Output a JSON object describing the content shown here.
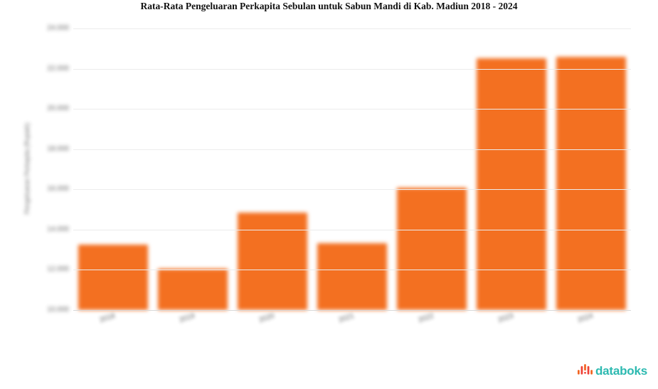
{
  "header": {
    "title": "Rata-Rata Pengeluaran Perkapita Sebulan untuk Sabun Mandi di Kab. Madiun 2018 - 2024"
  },
  "chart_data": {
    "type": "bar",
    "title": "Rata-Rata Pengeluaran Perkapita Sebulan untuk Sabun Mandi di Kab. Madiun 2018 - 2024",
    "categories": [
      "2018",
      "2019",
      "2020",
      "2021",
      "2022",
      "2023",
      "2024"
    ],
    "values": [
      13250,
      12050,
      14830,
      13325,
      16080,
      22515,
      22585
    ],
    "xlabel": "",
    "ylabel": "Pengeluaran Perkapita (Rupiah)",
    "ylim": [
      10000,
      24000
    ],
    "y_tick_step": 2000,
    "y_tick_labels_bottom_to_top": [
      "10.000",
      "12.000",
      "14.000",
      "16.000",
      "18.000",
      "20.000",
      "22.000",
      "24.000"
    ],
    "grid": true,
    "legend": "none",
    "bar_color": "#f37021"
  },
  "footer": {
    "logo_text": "databoks",
    "logo_text_color": "#2CB9B0",
    "logo_icon_colors": [
      "#F26522",
      "#EF4136"
    ]
  }
}
